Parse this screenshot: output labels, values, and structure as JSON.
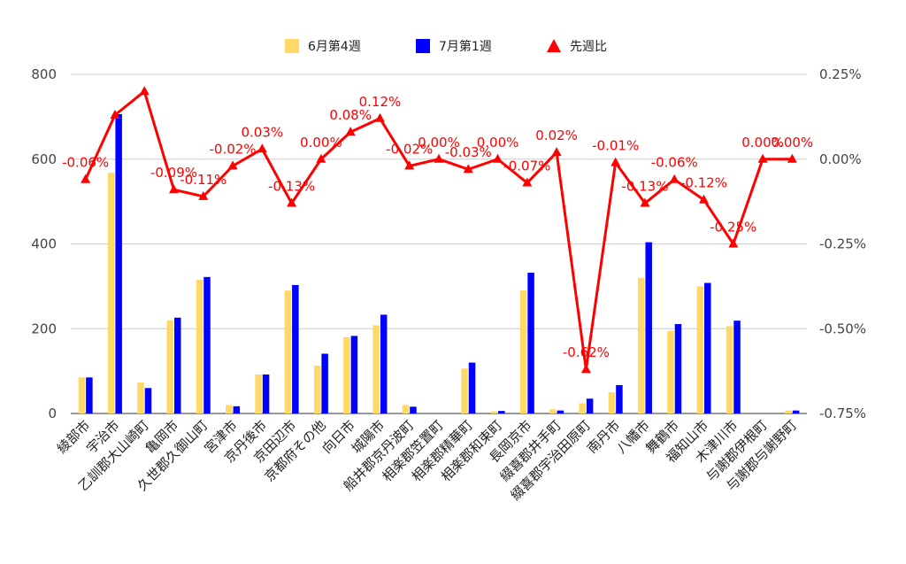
{
  "chart_data": {
    "type": "bar",
    "title": "",
    "xlabel": "",
    "ylabel": "",
    "ylim": [
      0,
      800
    ],
    "y2lim": [
      -0.75,
      0.25
    ],
    "yticks": [
      "0",
      "200",
      "400",
      "600",
      "800"
    ],
    "y2ticks": [
      "-0.75%",
      "-0.50%",
      "-0.25%",
      "0.00%",
      "0.25%"
    ],
    "grid": true,
    "legend_position": "top",
    "legend": [
      {
        "name": "6月第4週",
        "color": "#FFD966",
        "marker": "square"
      },
      {
        "name": "7月第1週",
        "color": "#0000FF",
        "marker": "square"
      },
      {
        "name": "先週比",
        "color": "#FF0000",
        "marker": "triangle"
      }
    ],
    "categories": [
      "綾部市",
      "宇治市",
      "乙訓郡大山崎町",
      "亀岡市",
      "久世郡久御山町",
      "宮津市",
      "京丹後市",
      "京田辺市",
      "京都府その他",
      "向日市",
      "城陽市",
      "船井郡京丹波町",
      "相楽郡笠置町",
      "相楽郡精華町",
      "相楽郡和束町",
      "長岡京市",
      "綴喜郡井手町",
      "綴喜郡宇治田原町",
      "南丹市",
      "八幡市",
      "舞鶴市",
      "福知山市",
      "木津川市",
      "与謝郡伊根町",
      "与謝郡与謝野町"
    ],
    "series": [
      {
        "name": "6月第4週",
        "type": "bar",
        "axis": "left",
        "color": "#FFD966",
        "values": [
          85,
          568,
          73,
          220,
          315,
          20,
          92,
          290,
          113,
          180,
          208,
          20,
          0,
          106,
          5,
          290,
          10,
          24,
          50,
          320,
          195,
          300,
          206,
          0,
          7
        ]
      },
      {
        "name": "7月第1週",
        "type": "bar",
        "axis": "left",
        "color": "#0000FF",
        "values": [
          85,
          706,
          60,
          226,
          322,
          17,
          92,
          303,
          141,
          183,
          233,
          16,
          0,
          120,
          6,
          332,
          7,
          35,
          67,
          404,
          211,
          308,
          219,
          0,
          7
        ]
      },
      {
        "name": "先週比",
        "type": "line",
        "axis": "right",
        "color": "#FF0000",
        "values": [
          -0.0006,
          0.0013,
          0.002,
          -0.0009,
          -0.0011,
          -0.0002,
          0.0003,
          -0.0013,
          0.0,
          0.0008,
          0.0012,
          -0.0002,
          0.0,
          -0.0003,
          0.0,
          -0.0007,
          0.0002,
          -0.0062,
          -0.0001,
          -0.0013,
          -0.0006,
          -0.0012,
          -0.0025,
          0.0,
          0.0
        ],
        "labels": [
          "-0.06%",
          "",
          "",
          "-0.09%",
          "-0.11%",
          "-0.02%",
          "0.03%",
          "-0.13%",
          "0.00%",
          "0.08%",
          "0.12%",
          "-0.02%",
          "0.00%",
          "-0.03%",
          "0.00%",
          "-0.07%",
          "0.02%",
          "-0.62%",
          "-0.01%",
          "-0.13%",
          "-0.06%",
          "-0.12%",
          "-0.25%",
          "0.00%",
          "0.00%"
        ]
      }
    ]
  }
}
